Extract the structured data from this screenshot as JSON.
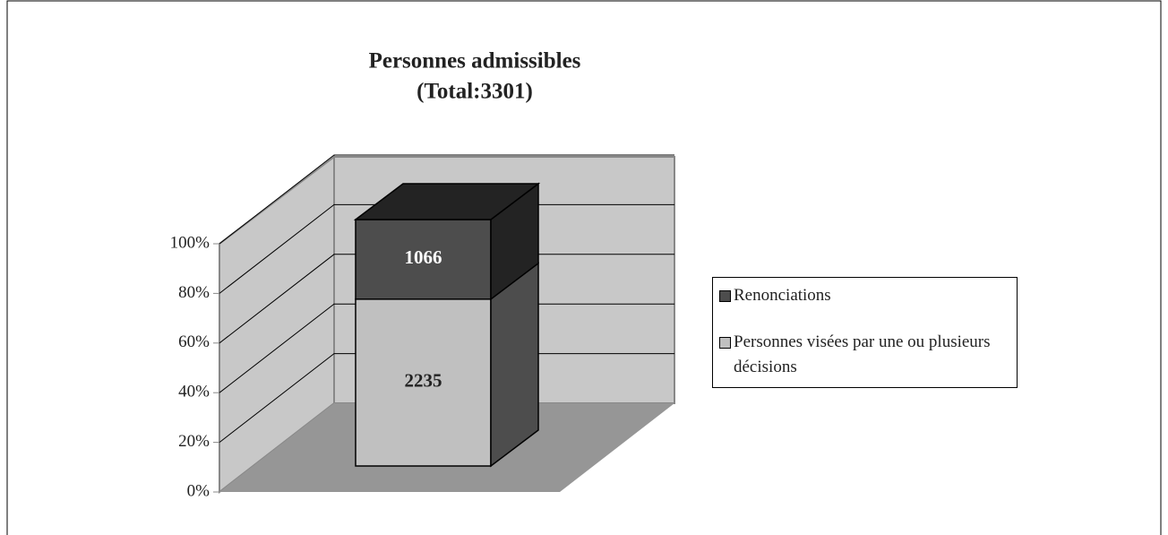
{
  "chart_data": {
    "type": "bar",
    "stacking": "percent",
    "title": "Personnes admissibles",
    "subtitle": "(Total:3301)",
    "categories": [
      null
    ],
    "series": [
      {
        "name": "Personnes visées par une ou plusieurs décisions",
        "color": "#c0c0c0",
        "values": [
          2235
        ]
      },
      {
        "name": "Renonciations",
        "color": "#4d4d4d",
        "values": [
          1066
        ]
      }
    ],
    "ylim": [
      0,
      100
    ],
    "yticks": [
      {
        "value": 0,
        "label": "0%"
      },
      {
        "value": 20,
        "label": "20%"
      },
      {
        "value": 40,
        "label": "40%"
      },
      {
        "value": 60,
        "label": "60%"
      },
      {
        "value": 80,
        "label": "80%"
      },
      {
        "value": 100,
        "label": "100%"
      }
    ],
    "grid": true,
    "legend": "right"
  }
}
